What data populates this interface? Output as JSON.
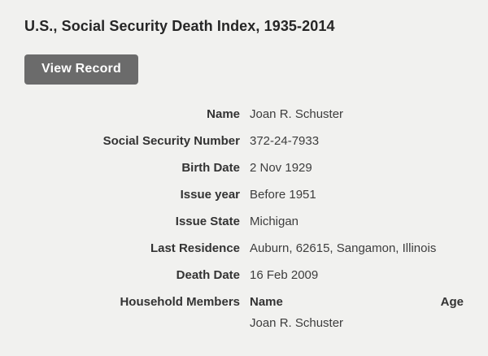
{
  "page": {
    "title": "U.S., Social Security Death Index, 1935-2014"
  },
  "toolbar": {
    "view_record_label": "View Record"
  },
  "record": {
    "fields": [
      {
        "label": "Name",
        "value": "Joan R. Schuster"
      },
      {
        "label": "Social Security Number",
        "value": "372-24-7933"
      },
      {
        "label": "Birth Date",
        "value": "2 Nov 1929"
      },
      {
        "label": "Issue year",
        "value": "Before 1951"
      },
      {
        "label": "Issue State",
        "value": "Michigan"
      },
      {
        "label": "Last Residence",
        "value": "Auburn, 62615, Sangamon, Illinois"
      },
      {
        "label": "Death Date",
        "value": "16 Feb 2009"
      }
    ],
    "household_members": {
      "label": "Household Members",
      "columns": {
        "name": "Name",
        "age": "Age"
      },
      "members": [
        {
          "name": "Joan R. Schuster",
          "age": ""
        }
      ]
    }
  },
  "colors": {
    "background": "#f1f1ef",
    "button_background": "#6b6b6b",
    "button_text": "#ffffff",
    "text": "#333333"
  }
}
